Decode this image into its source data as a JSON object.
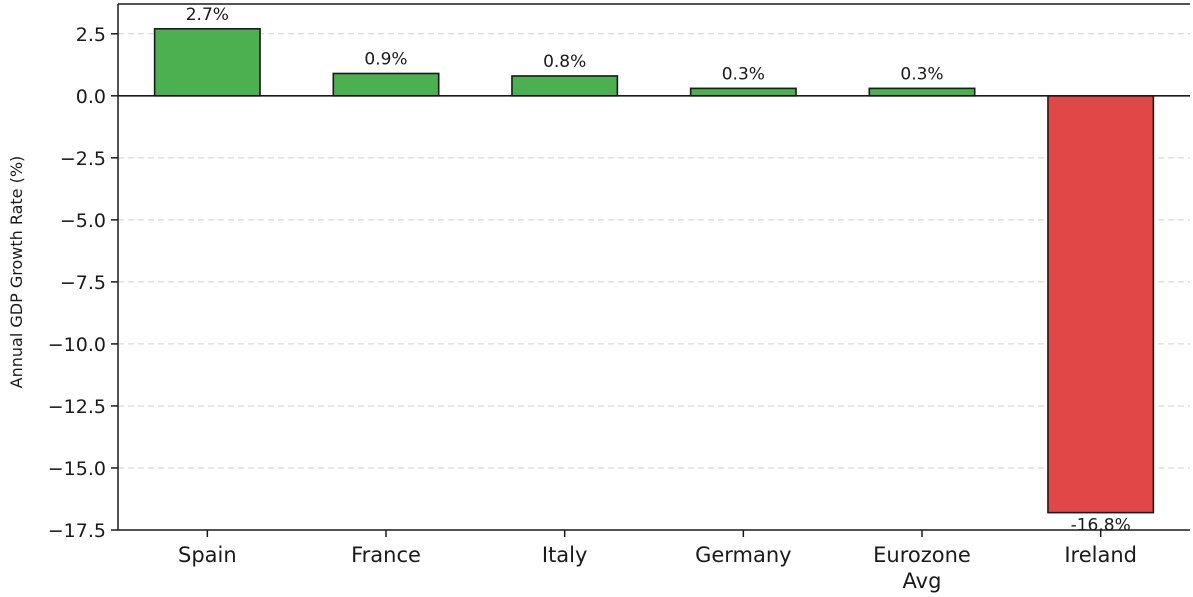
{
  "chart_data": {
    "type": "bar",
    "categories": [
      [
        "Spain"
      ],
      [
        "France"
      ],
      [
        "Italy"
      ],
      [
        "Germany"
      ],
      [
        "Eurozone",
        "Avg"
      ],
      [
        "Ireland"
      ]
    ],
    "values": [
      2.7,
      0.9,
      0.8,
      0.3,
      0.3,
      -16.8
    ],
    "data_labels": [
      "2.7%",
      "0.9%",
      "0.8%",
      "0.3%",
      "0.3%",
      "-16.8%"
    ],
    "ylabel": "Annual GDP Growth Rate (%)",
    "ylim": [
      -17.5,
      3.7
    ],
    "yticks": [
      2.5,
      0.0,
      -2.5,
      -5.0,
      -7.5,
      -10.0,
      -12.5,
      -15.0,
      -17.5
    ],
    "ytick_labels": [
      "2.5",
      "0.0",
      "−2.5",
      "−5.0",
      "−7.5",
      "−10.0",
      "−12.5",
      "−15.0",
      "−17.5"
    ],
    "grid": true,
    "colors": {
      "positive": "#4caf50",
      "negative": "#e04848"
    }
  }
}
